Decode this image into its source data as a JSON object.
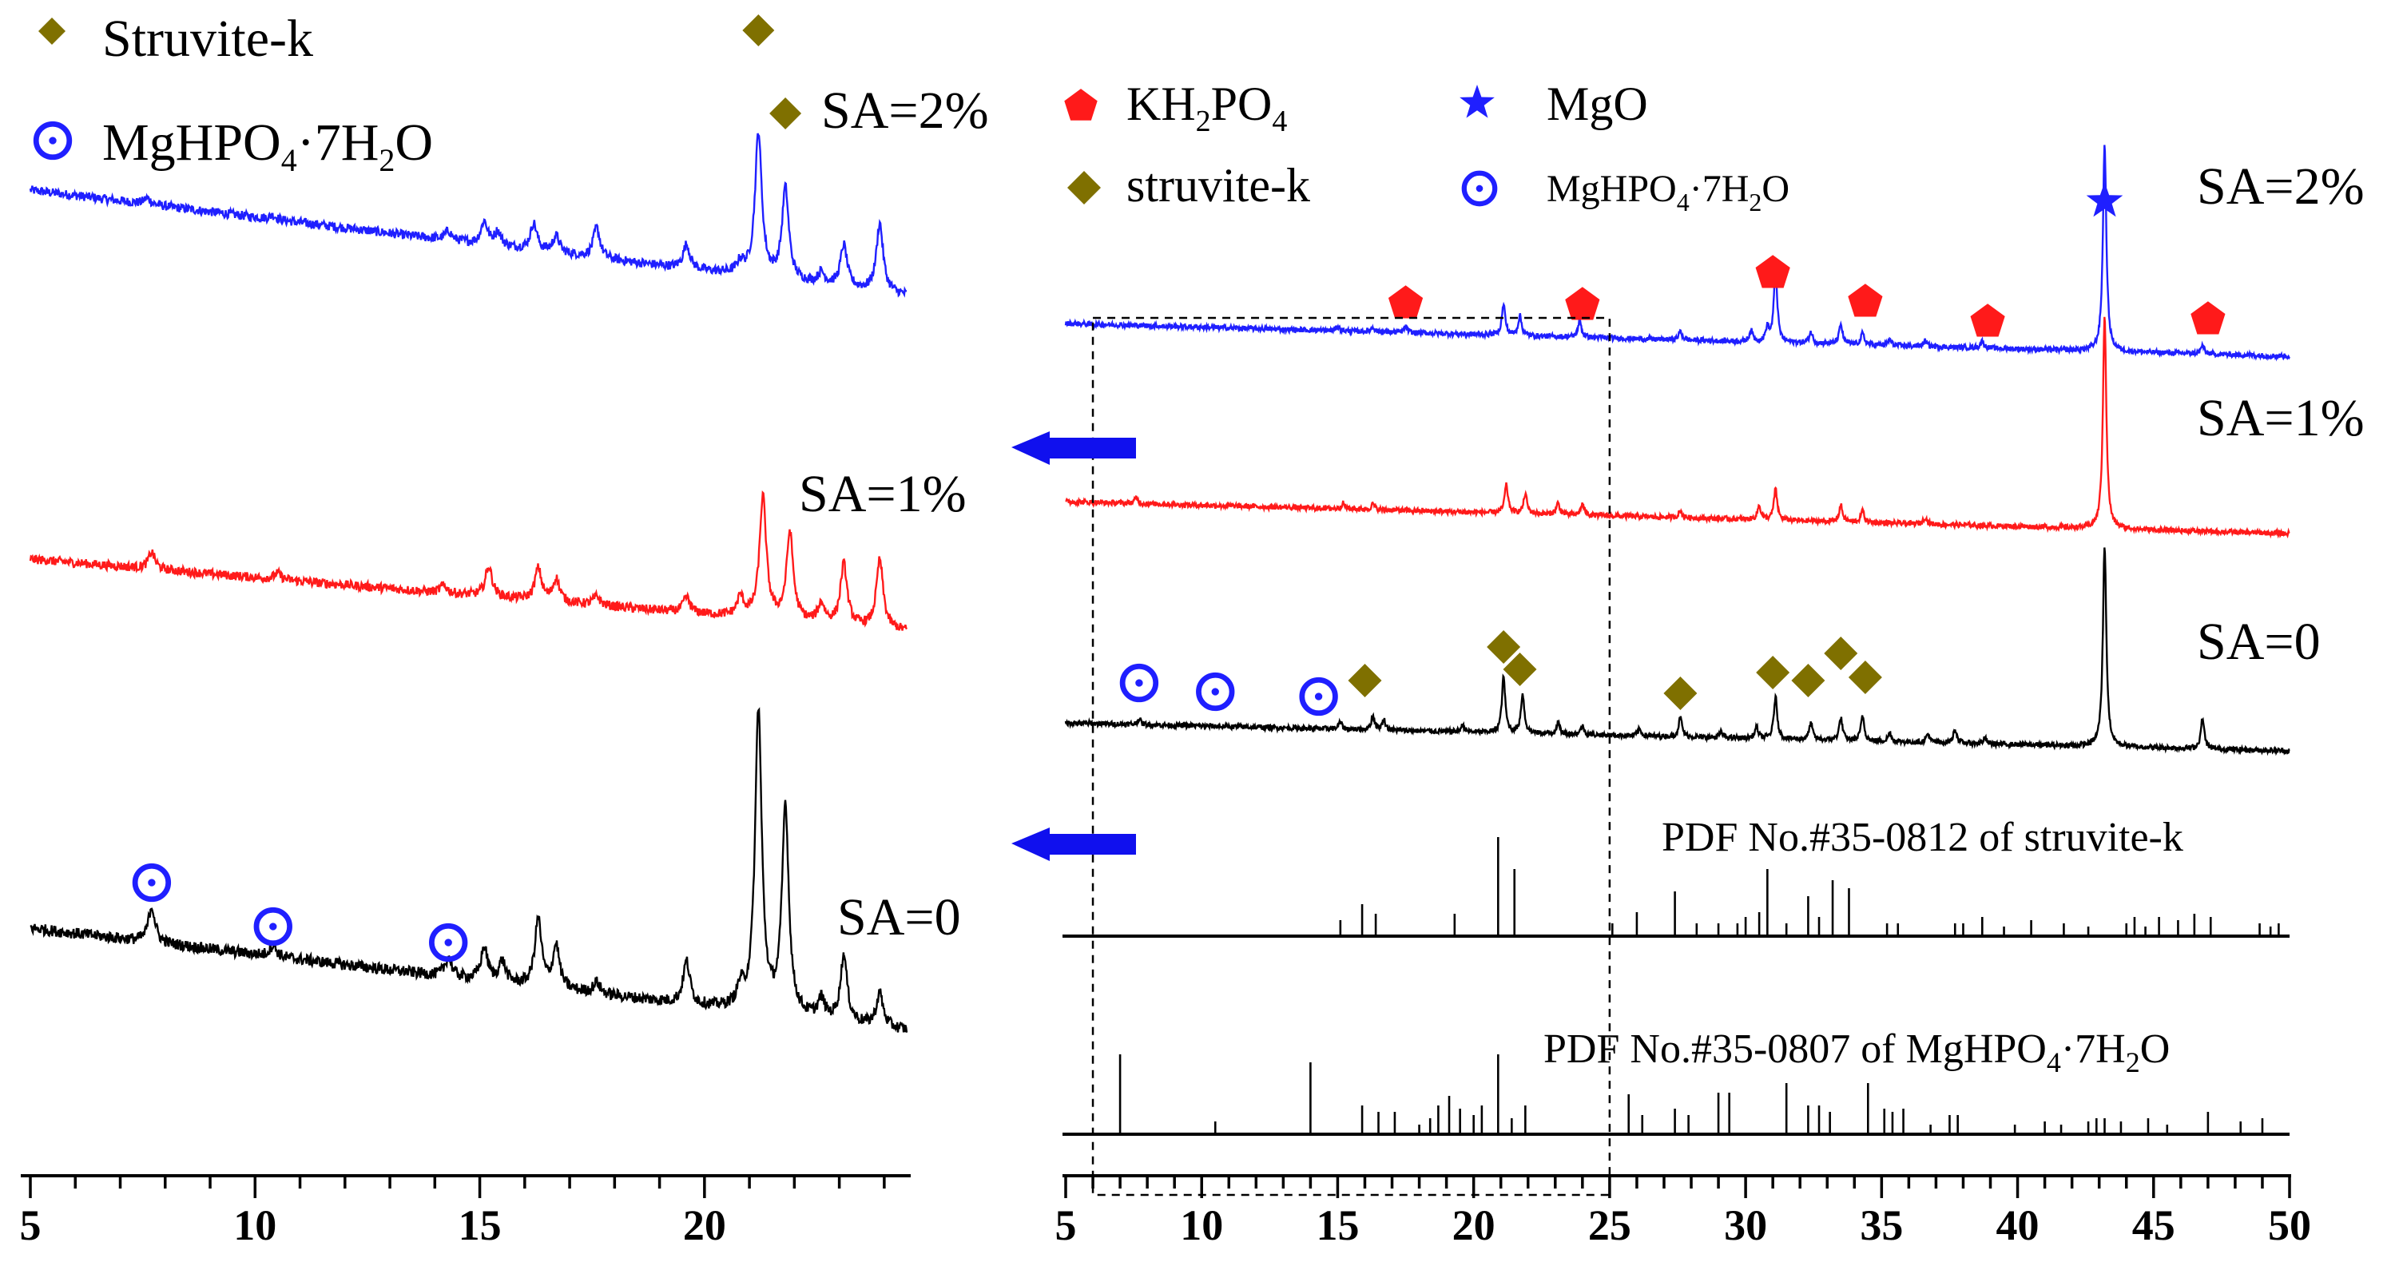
{
  "colors": {
    "blue": "#1f1fff",
    "red": "#ff1a1a",
    "black": "#000000",
    "olive": "#7f7000",
    "arrow": "#1010ee"
  },
  "chart_data": [
    {
      "id": "left-zoom-panel",
      "type": "line",
      "xlabel": "",
      "ylabel": "",
      "xlim": [
        5,
        24.5
      ],
      "xticks": [
        5,
        10,
        15,
        20
      ],
      "legend": [
        "Struvite-k",
        "MgHPO4·7H2O"
      ],
      "series": [
        {
          "name": "SA=2%",
          "label": "SA=2%",
          "color": "#1f1fff",
          "baseline_start": 0.0,
          "baseline_end": 1.0,
          "peaks": [
            [
              7.6,
              0.08
            ],
            [
              10.4,
              0.05
            ],
            [
              14.3,
              0.12
            ],
            [
              15.1,
              0.3
            ],
            [
              15.4,
              0.18
            ],
            [
              16.2,
              0.35
            ],
            [
              16.7,
              0.22
            ],
            [
              17.6,
              0.4
            ],
            [
              19.6,
              0.32
            ],
            [
              20.8,
              0.15
            ],
            [
              21.2,
              1.9
            ],
            [
              21.8,
              1.2
            ],
            [
              22.6,
              0.15
            ],
            [
              23.1,
              0.55
            ],
            [
              23.9,
              0.9
            ]
          ]
        },
        {
          "name": "SA=1%",
          "label": "SA=1%",
          "color": "#ff1a1a",
          "baseline_start": 0.0,
          "baseline_end": 0.7,
          "peaks": [
            [
              7.7,
              0.22
            ],
            [
              10.5,
              0.08
            ],
            [
              14.2,
              0.1
            ],
            [
              15.2,
              0.4
            ],
            [
              16.3,
              0.42
            ],
            [
              16.7,
              0.3
            ],
            [
              17.6,
              0.12
            ],
            [
              19.6,
              0.2
            ],
            [
              20.8,
              0.25
            ],
            [
              21.3,
              1.6
            ],
            [
              21.9,
              1.15
            ],
            [
              22.6,
              0.25
            ],
            [
              23.1,
              0.8
            ],
            [
              23.9,
              0.9
            ]
          ]
        },
        {
          "name": "SA=0",
          "label": "SA=0",
          "color": "#000000",
          "baseline_start": 0.0,
          "baseline_end": 1.0,
          "peaks": [
            [
              7.7,
              0.38
            ],
            [
              10.4,
              0.12
            ],
            [
              14.3,
              0.2
            ],
            [
              15.1,
              0.35
            ],
            [
              15.5,
              0.22
            ],
            [
              16.3,
              0.72
            ],
            [
              16.7,
              0.45
            ],
            [
              17.6,
              0.12
            ],
            [
              19.6,
              0.45
            ],
            [
              20.8,
              0.2
            ],
            [
              21.2,
              3.2
            ],
            [
              21.8,
              2.2
            ],
            [
              22.6,
              0.2
            ],
            [
              23.1,
              0.7
            ],
            [
              23.9,
              0.35
            ]
          ]
        }
      ],
      "markers": {
        "struvite_k": [
          [
            21.2,
            "SA=2%"
          ],
          [
            21.8,
            "SA=2%"
          ]
        ],
        "mghpo4": [
          [
            7.7,
            "SA=0"
          ],
          [
            10.4,
            "SA=0"
          ],
          [
            14.3,
            "SA=0"
          ]
        ]
      }
    },
    {
      "id": "right-full-panel",
      "type": "line",
      "xlabel": "",
      "ylabel": "",
      "xlim": [
        5,
        50
      ],
      "xticks": [
        5,
        10,
        15,
        20,
        25,
        30,
        35,
        40,
        45,
        50
      ],
      "legend": [
        "KH2PO4",
        "MgO",
        "struvite-k",
        "MgHPO4·7H2O"
      ],
      "zoom_box_x": [
        6,
        25
      ],
      "series": [
        {
          "name": "SA=2%",
          "label": "SA=2%",
          "color": "#1f1fff",
          "baseline_start": 0.3,
          "baseline_end": 0.0,
          "peaks": [
            [
              15.0,
              0.08
            ],
            [
              16.3,
              0.08
            ],
            [
              17.5,
              0.1
            ],
            [
              21.1,
              0.55
            ],
            [
              21.7,
              0.35
            ],
            [
              23.9,
              0.3
            ],
            [
              27.6,
              0.15
            ],
            [
              30.2,
              0.2
            ],
            [
              30.8,
              0.25
            ],
            [
              31.1,
              1.3
            ],
            [
              32.4,
              0.2
            ],
            [
              33.5,
              0.35
            ],
            [
              34.3,
              0.2
            ],
            [
              35.3,
              0.1
            ],
            [
              36.6,
              0.1
            ],
            [
              38.7,
              0.12
            ],
            [
              43.2,
              3.7
            ],
            [
              46.8,
              0.15
            ]
          ]
        },
        {
          "name": "SA=1%",
          "label": "SA=1%",
          "color": "#ff1a1a",
          "baseline_start": 0.15,
          "baseline_end": 0.0,
          "peaks": [
            [
              7.6,
              0.1
            ],
            [
              15.2,
              0.1
            ],
            [
              16.3,
              0.1
            ],
            [
              21.2,
              0.5
            ],
            [
              21.9,
              0.35
            ],
            [
              23.1,
              0.2
            ],
            [
              24.0,
              0.2
            ],
            [
              27.6,
              0.12
            ],
            [
              30.5,
              0.25
            ],
            [
              31.1,
              0.55
            ],
            [
              33.5,
              0.3
            ],
            [
              34.3,
              0.2
            ],
            [
              36.6,
              0.12
            ],
            [
              43.2,
              3.8
            ]
          ]
        },
        {
          "name": "SA=0",
          "label": "SA=0",
          "color": "#000000",
          "baseline_start": 0.2,
          "baseline_end": 0.0,
          "peaks": [
            [
              7.7,
              0.1
            ],
            [
              15.1,
              0.12
            ],
            [
              16.3,
              0.25
            ],
            [
              16.7,
              0.18
            ],
            [
              19.6,
              0.12
            ],
            [
              21.1,
              1.0
            ],
            [
              21.8,
              0.7
            ],
            [
              23.1,
              0.2
            ],
            [
              24.0,
              0.15
            ],
            [
              26.1,
              0.12
            ],
            [
              27.6,
              0.35
            ],
            [
              29.1,
              0.1
            ],
            [
              30.4,
              0.2
            ],
            [
              31.1,
              0.75
            ],
            [
              32.4,
              0.3
            ],
            [
              33.5,
              0.4
            ],
            [
              34.3,
              0.45
            ],
            [
              35.3,
              0.15
            ],
            [
              36.7,
              0.15
            ],
            [
              37.7,
              0.25
            ],
            [
              38.8,
              0.1
            ],
            [
              43.2,
              3.6
            ],
            [
              46.8,
              0.55
            ]
          ]
        }
      ],
      "markers": {
        "kh2po4": [
          [
            17.5,
            "SA=2%"
          ],
          [
            24.0,
            "SA=2%"
          ],
          [
            31.0,
            "SA=2%"
          ],
          [
            34.4,
            "SA=2%"
          ],
          [
            38.9,
            "SA=2%"
          ],
          [
            47.0,
            "SA=2%"
          ]
        ],
        "mgo": [
          [
            43.2,
            "SA=2%"
          ]
        ],
        "struvite_k": [
          [
            16.0,
            "SA=0"
          ],
          [
            21.1,
            "SA=0"
          ],
          [
            21.7,
            "SA=0"
          ],
          [
            27.6,
            "SA=0"
          ],
          [
            31.0,
            "SA=0"
          ],
          [
            32.3,
            "SA=0"
          ],
          [
            33.5,
            "SA=0"
          ],
          [
            34.4,
            "SA=0"
          ]
        ],
        "mghpo4": [
          [
            7.7,
            "SA=0"
          ],
          [
            10.5,
            "SA=0"
          ],
          [
            14.3,
            "SA=0"
          ]
        ]
      },
      "reference_patterns": [
        {
          "label": "PDF No.#35-0812 of struvite-k",
          "lines": [
            [
              15.1,
              0.1
            ],
            [
              15.9,
              0.2
            ],
            [
              16.4,
              0.14
            ],
            [
              19.3,
              0.14
            ],
            [
              20.9,
              0.62
            ],
            [
              21.5,
              0.42
            ],
            [
              25.1,
              0.08
            ],
            [
              26.0,
              0.15
            ],
            [
              27.4,
              0.28
            ],
            [
              28.2,
              0.08
            ],
            [
              29.0,
              0.08
            ],
            [
              29.7,
              0.08
            ],
            [
              30.0,
              0.12
            ],
            [
              30.5,
              0.15
            ],
            [
              30.8,
              0.42
            ],
            [
              31.5,
              0.08
            ],
            [
              32.3,
              0.25
            ],
            [
              32.7,
              0.12
            ],
            [
              33.2,
              0.35
            ],
            [
              33.8,
              0.3
            ],
            [
              35.2,
              0.08
            ],
            [
              35.6,
              0.08
            ],
            [
              37.7,
              0.08
            ],
            [
              38.0,
              0.08
            ],
            [
              38.7,
              0.12
            ],
            [
              39.5,
              0.06
            ],
            [
              40.5,
              0.1
            ],
            [
              41.7,
              0.08
            ],
            [
              42.6,
              0.06
            ],
            [
              44.0,
              0.08
            ],
            [
              44.3,
              0.12
            ],
            [
              44.7,
              0.06
            ],
            [
              45.2,
              0.12
            ],
            [
              45.9,
              0.1
            ],
            [
              46.5,
              0.14
            ],
            [
              47.1,
              0.12
            ],
            [
              48.9,
              0.08
            ],
            [
              49.3,
              0.06
            ],
            [
              49.6,
              0.08
            ]
          ]
        },
        {
          "label": "PDF No.#35-0807 of MgHPO4·7H2O",
          "lines": [
            [
              7.0,
              0.5
            ],
            [
              10.5,
              0.08
            ],
            [
              14.0,
              0.45
            ],
            [
              15.9,
              0.18
            ],
            [
              16.5,
              0.14
            ],
            [
              17.1,
              0.14
            ],
            [
              18.0,
              0.06
            ],
            [
              18.4,
              0.1
            ],
            [
              18.7,
              0.18
            ],
            [
              19.1,
              0.24
            ],
            [
              19.5,
              0.16
            ],
            [
              20.0,
              0.12
            ],
            [
              20.3,
              0.18
            ],
            [
              20.9,
              0.5
            ],
            [
              21.4,
              0.1
            ],
            [
              21.9,
              0.18
            ],
            [
              25.7,
              0.25
            ],
            [
              26.2,
              0.12
            ],
            [
              27.4,
              0.16
            ],
            [
              27.9,
              0.12
            ],
            [
              29.0,
              0.26
            ],
            [
              29.4,
              0.26
            ],
            [
              31.5,
              0.32
            ],
            [
              32.3,
              0.18
            ],
            [
              32.7,
              0.18
            ],
            [
              33.1,
              0.14
            ],
            [
              34.5,
              0.32
            ],
            [
              35.1,
              0.16
            ],
            [
              35.4,
              0.14
            ],
            [
              35.8,
              0.16
            ],
            [
              36.8,
              0.06
            ],
            [
              37.5,
              0.12
            ],
            [
              37.8,
              0.12
            ],
            [
              39.9,
              0.06
            ],
            [
              41.0,
              0.08
            ],
            [
              41.6,
              0.06
            ],
            [
              42.6,
              0.08
            ],
            [
              42.9,
              0.1
            ],
            [
              43.2,
              0.1
            ],
            [
              43.8,
              0.08
            ],
            [
              44.8,
              0.1
            ],
            [
              45.5,
              0.06
            ],
            [
              47.0,
              0.14
            ],
            [
              48.2,
              0.08
            ],
            [
              49.0,
              0.1
            ]
          ]
        }
      ]
    }
  ],
  "legends": {
    "left": {
      "struvite": "Struvite-k",
      "mghpo4": "MgHPO4·7H2O"
    },
    "right": {
      "kh2po4": "KH2PO4",
      "mgo": "MgO",
      "struvite": "struvite-k",
      "mghpo4": "MgHPO4·7H2O"
    }
  }
}
